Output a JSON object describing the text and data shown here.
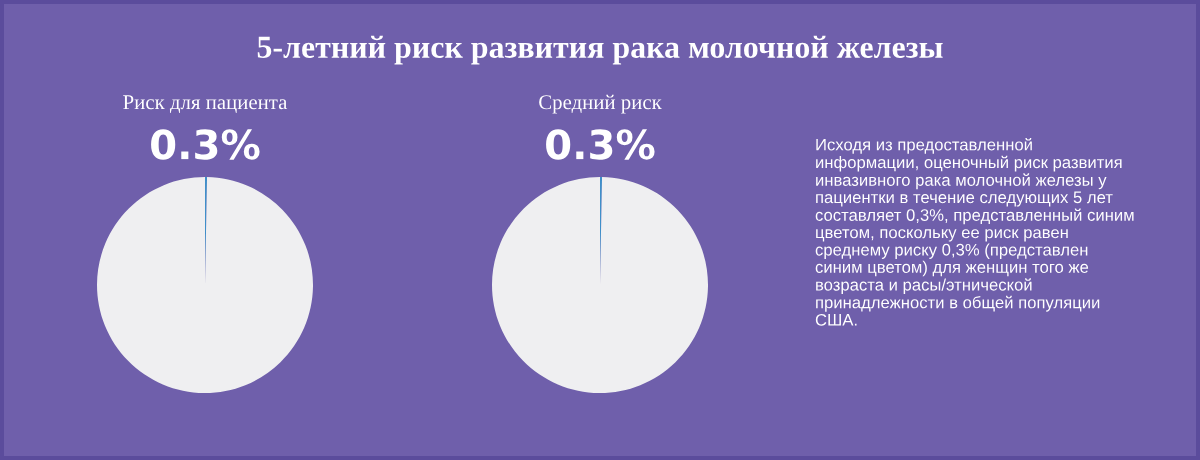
{
  "chart_data": [
    {
      "type": "other",
      "title": "5-летний риск развития рака молочной железы"
    },
    {
      "type": "pie",
      "title": "Риск для пациента",
      "categories": [
        null,
        null
      ],
      "values": [
        0.3,
        99.7
      ],
      "colors": [
        "#3f8fc9",
        "#efeff1"
      ],
      "value_labels": [
        "0.3%",
        null
      ]
    },
    {
      "type": "pie",
      "title": "Средний риск",
      "categories": [
        null,
        null
      ],
      "values": [
        0.3,
        99.7
      ],
      "colors": [
        "#3f8fc9",
        "#efeff1"
      ],
      "value_labels": [
        "0.3%",
        null
      ]
    },
    {
      "type": "other",
      "annotations": [
        "Исходя из предоставленной информации, оценочный риск развития инвазивного рака молочной железы у пациентки в течение следующих 5 лет составляет 0,3%, представленный синим цветом, поскольку ее риск равен среднему риску 0,3% (представлен синим цветом) для женщин того же возраста и расы/этнической принадлежности в общей популяции США."
      ]
    }
  ]
}
